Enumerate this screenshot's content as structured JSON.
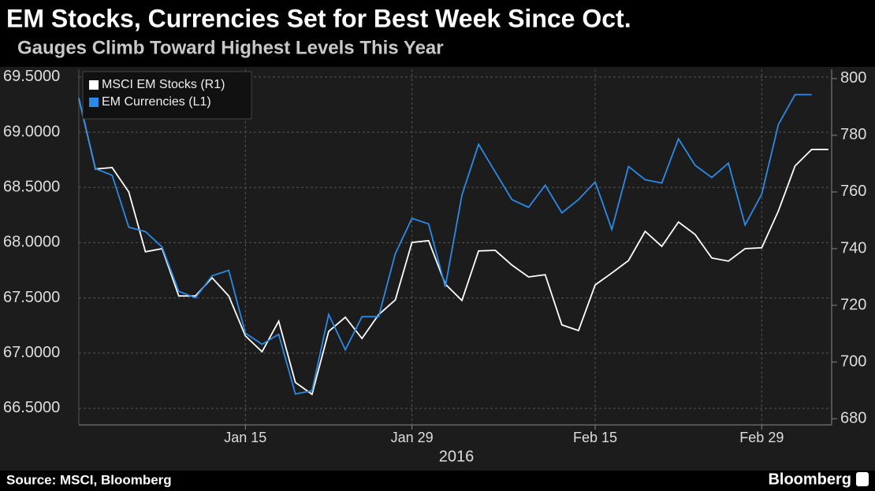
{
  "chart_data": {
    "type": "line",
    "title": "EM Stocks, Currencies Set for Best Week Since Oct.",
    "subtitle": "Gauges Climb Toward Highest Levels This Year",
    "source": "Source: MSCI, Bloomberg",
    "brand": "Bloomberg",
    "xlabel": "2016",
    "categories": [
      null,
      null,
      null,
      null,
      null,
      null,
      null,
      null,
      null,
      null,
      "Jan 15",
      null,
      null,
      null,
      null,
      null,
      null,
      null,
      null,
      null,
      "Jan 29",
      null,
      null,
      null,
      null,
      null,
      null,
      null,
      null,
      null,
      null,
      "Feb 15",
      null,
      null,
      null,
      null,
      null,
      null,
      null,
      null,
      null,
      "Feb 29",
      null,
      null,
      null,
      null
    ],
    "series": [
      {
        "name": "MSCI EM Stocks (R1)",
        "color": "#ffffff",
        "axis": "y2",
        "values": [
          793.1,
          768.1,
          768.6,
          760.0,
          738.9,
          740.0,
          723.3,
          723.3,
          729.7,
          723.3,
          709.2,
          703.6,
          714.4,
          692.8,
          688.6,
          710.8,
          715.8,
          708.3,
          716.7,
          721.9,
          742.2,
          742.8,
          727.5,
          721.7,
          739.2,
          739.4,
          734.2,
          730.0,
          730.8,
          713.1,
          711.1,
          727.2,
          731.4,
          735.8,
          746.1,
          740.8,
          749.4,
          745.0,
          736.7,
          735.6,
          740.0,
          740.3,
          753.3,
          769.2,
          775.0,
          775.0
        ]
      },
      {
        "name": "EM Currencies (L1)",
        "color": "#2b8ae6",
        "values": [
          69.31,
          68.67,
          68.61,
          68.14,
          68.1,
          67.96,
          67.56,
          67.5,
          67.7,
          67.75,
          67.18,
          67.08,
          67.17,
          66.63,
          66.66,
          67.35,
          67.03,
          67.33,
          67.33,
          67.9,
          68.22,
          68.17,
          67.6,
          68.43,
          68.89,
          68.64,
          68.39,
          68.32,
          68.52,
          68.27,
          68.39,
          68.55,
          68.12,
          68.69,
          68.57,
          68.54,
          68.94,
          68.7,
          68.59,
          68.72,
          68.16,
          68.44,
          69.07,
          69.34,
          69.34,
          null
        ]
      }
    ],
    "ylim": [
      66.35,
      69.57
    ],
    "yticks": [
      {
        "value": 66.5,
        "label": "66.5000"
      },
      {
        "value": 67.0,
        "label": "67.0000"
      },
      {
        "value": 67.5,
        "label": "67.5000"
      },
      {
        "value": 68.0,
        "label": "68.0000"
      },
      {
        "value": 68.5,
        "label": "68.5000"
      },
      {
        "value": 69.0,
        "label": "69.0000"
      },
      {
        "value": 69.5,
        "label": "69.5000"
      }
    ],
    "y2lim": [
      677.8,
      803.3
    ],
    "y2ticks": [
      680,
      700,
      720,
      740,
      760,
      780,
      800
    ],
    "grid": true
  }
}
